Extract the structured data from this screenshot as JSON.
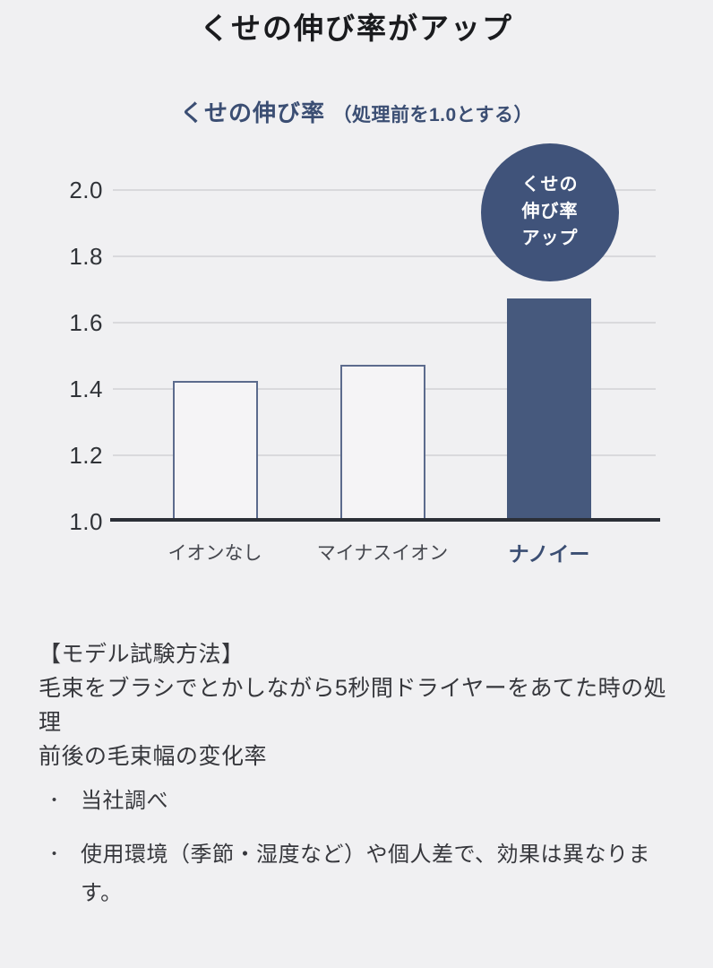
{
  "page": {
    "title": "くせの伸び率がアップ",
    "background": "#f0f0f2"
  },
  "colors": {
    "navy_fill": "#46597d",
    "badge_fill": "#40537a",
    "bar_outline": "#5c6b8d",
    "navy_text": "#3b4e73",
    "gridline": "#d9d9dc",
    "axis_baseline": "#2b2f37",
    "body_text": "#36373c"
  },
  "chart_data": {
    "type": "bar",
    "title": "くせの伸び率",
    "title_note": "（処理前を1.0とする）",
    "categories": [
      "イオンなし",
      "マイナスイオン",
      "ナノイー"
    ],
    "values": [
      1.42,
      1.47,
      1.67
    ],
    "ylim": [
      1.0,
      2.0
    ],
    "ytick_step": 0.2,
    "yticks": [
      "2.0",
      "1.8",
      "1.6",
      "1.4",
      "1.2",
      "1.0"
    ],
    "grid": true,
    "baseline_value": 1.0,
    "highlight_index": 2,
    "annotation": {
      "shape": "circle",
      "text_lines": [
        "くせの",
        "伸び率",
        "アップ"
      ],
      "attached_to": "ナノイー"
    }
  },
  "notes": {
    "method_heading": "【モデル試験方法】",
    "method_body": "毛束をブラシでとかしながら5秒間ドライヤーをあてた時の処理\n前後の毛束幅の変化率",
    "bullet_char": "・",
    "bullets": [
      "当社調べ",
      "使用環境（季節・湿度など）や個人差で、効果は異なりま\nす。"
    ]
  }
}
